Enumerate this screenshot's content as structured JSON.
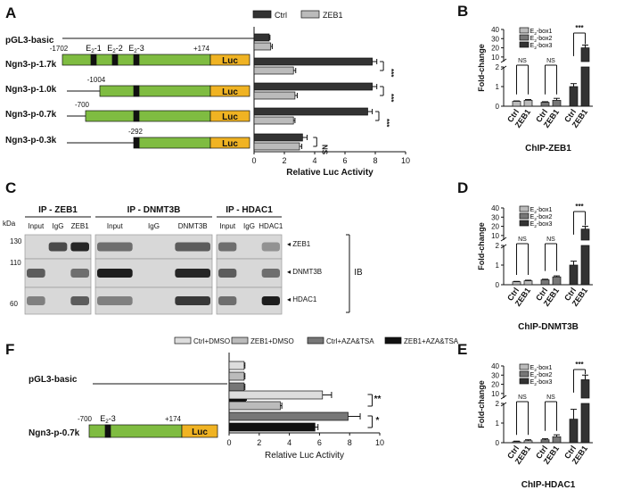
{
  "panels": {
    "A": "A",
    "B": "B",
    "C": "C",
    "D": "D",
    "E": "E",
    "F": "F"
  },
  "axis_common": {
    "rel_luc": "Relative Luc Activity",
    "fold": "Fold-change",
    "ns": "NS",
    "sig3": "***",
    "sig2": "**",
    "sig1": "*"
  },
  "construct_labels": {
    "luc": "Luc"
  },
  "colors": {
    "green": "#7fbc41",
    "orange": "#f0b323",
    "dark": "#333333",
    "light": "#bbbbbb",
    "mid": "#777777"
  },
  "panel_C": {
    "ip_headers": [
      "IP - ZEB1",
      "IP - DNMT3B",
      "IP - HDAC1"
    ],
    "lanes": [
      [
        "Input",
        "IgG",
        "ZEB1"
      ],
      [
        "Input",
        "IgG",
        "DNMT3B"
      ],
      [
        "Input",
        "IgG",
        "HDAC1"
      ]
    ],
    "kda": "kDa",
    "mw": [
      "130",
      "110",
      "60"
    ],
    "blot_labels": [
      "ZEB1",
      "DNMT3B",
      "HDAC1"
    ],
    "ib": "IB"
  },
  "chart_data": [
    {
      "id": "A",
      "type": "bar",
      "orientation": "horizontal",
      "legend": [
        "Ctrl",
        "ZEB1"
      ],
      "categories": [
        "pGL3-basic",
        "Ngn3-p-1.7k",
        "Ngn3-p-1.0k",
        "Ngn3-p-0.7k",
        "Ngn3-p-0.3k"
      ],
      "series": [
        {
          "name": "Ctrl",
          "values": [
            1.0,
            7.8,
            7.8,
            7.5,
            3.2
          ]
        },
        {
          "name": "ZEB1",
          "values": [
            1.1,
            2.6,
            2.7,
            2.6,
            3.0
          ]
        }
      ],
      "errors": [
        [
          0.05,
          0.3,
          0.3,
          0.3,
          0.3
        ],
        [
          0.1,
          0.15,
          0.15,
          0.1,
          0.15
        ]
      ],
      "xlabel": "Relative Luc Activity",
      "xlim": [
        0,
        10
      ],
      "xticks": [
        "0",
        "2",
        "4",
        "6",
        "8",
        "10"
      ],
      "significance": [
        "",
        "***",
        "***",
        "***",
        "NS"
      ],
      "constructs": [
        {
          "start": "-1702",
          "end": "+174",
          "boxes": [
            "E2-1",
            "E2-2",
            "E2-3"
          ]
        },
        {
          "start": "-1004"
        },
        {
          "start": "-700"
        },
        {
          "start": "-292"
        }
      ]
    },
    {
      "id": "B",
      "type": "bar",
      "legend": [
        "E2-box1",
        "E2-box2",
        "E2-box3"
      ],
      "groups": [
        "Ctrl",
        "ZEB1",
        "Ctrl",
        "ZEB1",
        "Ctrl",
        "ZEB1"
      ],
      "values": [
        0.25,
        0.3,
        0.2,
        0.3,
        1.0,
        20
      ],
      "errors": [
        0.02,
        0.04,
        0.03,
        0.1,
        0.15,
        3
      ],
      "ylabel": "Fold-change",
      "yticks_upper": [
        "10",
        "20",
        "30",
        "40"
      ],
      "yticks_lower": [
        "0",
        "1",
        "2"
      ],
      "xlabel": "ChIP-ZEB1",
      "significance": [
        "NS",
        "NS",
        "***"
      ]
    },
    {
      "id": "D",
      "type": "bar",
      "legend": [
        "E2-box1",
        "E2-box2",
        "E2-box3"
      ],
      "groups": [
        "Ctrl",
        "ZEB1",
        "Ctrl",
        "ZEB1",
        "Ctrl",
        "ZEB1"
      ],
      "values": [
        0.15,
        0.2,
        0.25,
        0.4,
        1.0,
        17
      ],
      "errors": [
        0.02,
        0.03,
        0.03,
        0.05,
        0.2,
        3
      ],
      "ylabel": "Fold-change",
      "yticks_upper": [
        "10",
        "20",
        "30",
        "40"
      ],
      "yticks_lower": [
        "0",
        "1",
        "2"
      ],
      "xlabel": "ChIP-DNMT3B",
      "significance": [
        "NS",
        "NS",
        "***"
      ]
    },
    {
      "id": "E",
      "type": "bar",
      "legend": [
        "E2-box1",
        "E2-box2",
        "E2-box3"
      ],
      "groups": [
        "Ctrl",
        "ZEB1",
        "Ctrl",
        "ZEB1",
        "Ctrl",
        "ZEB1"
      ],
      "values": [
        0.05,
        0.1,
        0.15,
        0.3,
        1.2,
        25
      ],
      "errors": [
        0.03,
        0.05,
        0.05,
        0.1,
        0.5,
        5
      ],
      "ylabel": "Fold-change",
      "yticks_upper": [
        "10",
        "20",
        "30",
        "40"
      ],
      "yticks_lower": [
        "0",
        "1",
        "2"
      ],
      "xlabel": "ChIP-HDAC1",
      "significance": [
        "NS",
        "NS",
        "***"
      ]
    },
    {
      "id": "F",
      "type": "bar",
      "orientation": "horizontal",
      "legend": [
        "Ctrl+DMSO",
        "ZEB1+DMSO",
        "Ctrl+AZA&TSA",
        "ZEB1+AZA&TSA"
      ],
      "categories": [
        "pGL3-basic",
        "Ngn3-p-0.7k"
      ],
      "series": [
        {
          "name": "Ctrl+DMSO",
          "values": [
            1.0,
            6.2
          ]
        },
        {
          "name": "ZEB1+DMSO",
          "values": [
            1.0,
            3.4
          ]
        },
        {
          "name": "Ctrl+AZA&TSA",
          "values": [
            1.0,
            7.9
          ]
        },
        {
          "name": "ZEB1+AZA&TSA",
          "values": [
            1.1,
            5.7
          ]
        }
      ],
      "errors": [
        [
          0.05,
          0.6
        ],
        [
          0.05,
          0.1
        ],
        [
          0.05,
          0.8
        ],
        [
          0.05,
          0.2
        ]
      ],
      "xlabel": "Relative Luc Activity",
      "xlim": [
        0,
        10
      ],
      "xticks": [
        "0",
        "2",
        "4",
        "6",
        "8",
        "10"
      ],
      "significance": [
        "**",
        "*"
      ],
      "constructs": [
        {
          "start": "-700",
          "end": "+174",
          "boxes": [
            "E2-3"
          ]
        }
      ]
    }
  ]
}
